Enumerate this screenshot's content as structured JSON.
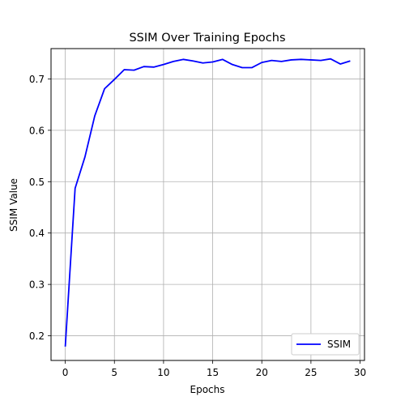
{
  "chart_data": {
    "type": "line",
    "title": "SSIM Over Training Epochs",
    "xlabel": "Epochs",
    "ylabel": "SSIM Value",
    "xlim": [
      -1.45,
      30.45
    ],
    "ylim": [
      0.152,
      0.759
    ],
    "xticks": [
      0,
      5,
      10,
      15,
      20,
      25,
      30
    ],
    "yticks": [
      0.2,
      0.3,
      0.4,
      0.5,
      0.6,
      0.7
    ],
    "grid": true,
    "legend_position": "lower-right",
    "series": [
      {
        "name": "SSIM",
        "color": "#0000ff",
        "x": [
          0,
          1,
          2,
          3,
          4,
          5,
          6,
          7,
          8,
          9,
          10,
          11,
          12,
          13,
          14,
          15,
          16,
          17,
          18,
          19,
          20,
          21,
          22,
          23,
          24,
          25,
          26,
          27,
          28,
          29
        ],
        "y": [
          0.179,
          0.487,
          0.548,
          0.628,
          0.681,
          0.699,
          0.718,
          0.717,
          0.724,
          0.723,
          0.728,
          0.734,
          0.738,
          0.735,
          0.731,
          0.733,
          0.738,
          0.728,
          0.722,
          0.722,
          0.732,
          0.736,
          0.734,
          0.737,
          0.738,
          0.737,
          0.736,
          0.739,
          0.729,
          0.735
        ]
      }
    ]
  }
}
